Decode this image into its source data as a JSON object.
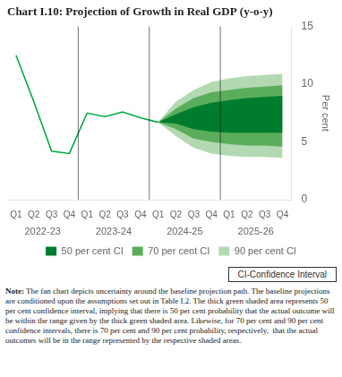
{
  "chart_data": {
    "type": "line",
    "title": "Chart I.10: Projection of Growth in Real GDP (y-o-y)",
    "y_label": "Per cent",
    "categories": [
      "Q1",
      "Q2",
      "Q3",
      "Q4",
      "Q1",
      "Q2",
      "Q3",
      "Q4",
      "Q1",
      "Q2",
      "Q3",
      "Q4",
      "Q1",
      "Q2",
      "Q3",
      "Q4"
    ],
    "x_groups": [
      "2022-23",
      "2023-24",
      "2024-25",
      "2025-26"
    ],
    "series": [
      {
        "type": "line",
        "color": "#00aa44",
        "values": [
          12.5,
          8.5,
          4.2,
          4.0,
          7.5,
          7.2,
          7.6,
          7.1,
          6.7,
          null,
          null,
          null,
          null,
          null,
          null,
          null
        ]
      },
      {
        "type": "area",
        "name": "50 per cent CI",
        "color": "#007c2e",
        "lower": [
          null,
          null,
          null,
          null,
          null,
          null,
          null,
          null,
          6.7,
          6.6,
          6.1,
          5.9,
          5.8,
          5.8,
          5.8,
          5.8
        ],
        "upper": [
          null,
          null,
          null,
          null,
          null,
          null,
          null,
          null,
          6.7,
          7.4,
          8.0,
          8.4,
          8.6,
          8.8,
          8.9,
          9.0
        ]
      },
      {
        "type": "area",
        "name": "70 per cent CI",
        "color": "#5aad5a",
        "lower": [
          null,
          null,
          null,
          null,
          null,
          null,
          null,
          null,
          6.7,
          6.1,
          5.3,
          5.0,
          4.8,
          4.7,
          4.7,
          4.6
        ],
        "upper": [
          null,
          null,
          null,
          null,
          null,
          null,
          null,
          null,
          6.7,
          7.9,
          8.8,
          9.3,
          9.5,
          9.7,
          9.8,
          9.9
        ]
      },
      {
        "type": "area",
        "name": "90 per cent CI",
        "color": "#b2d9b2",
        "lower": [
          null,
          null,
          null,
          null,
          null,
          null,
          null,
          null,
          6.7,
          5.5,
          4.5,
          4.0,
          3.8,
          3.7,
          3.7,
          3.6
        ],
        "upper": [
          null,
          null,
          null,
          null,
          null,
          null,
          null,
          null,
          6.7,
          8.5,
          9.5,
          10.2,
          10.5,
          10.7,
          10.8,
          10.9
        ]
      }
    ],
    "ylim": [
      0,
      15
    ],
    "yticks": [
      0,
      5,
      10,
      15
    ],
    "grid": false,
    "legend": "bottom",
    "annotations": [
      "CI-Confidence Interval"
    ],
    "note": {
      "label": "Note:",
      "text": " The fan chart depicts uncertainty around the baseline projection path. The baseline projections are conditioned upon the assumptions set out in Table I.2. The thick green shaded area represents 50 per cent confidence interval, implying that there is 50 per cent probability that the actual outcome will be within the range given by the thick green shaded area. Likewise, for 70 per cent and 90 per cent confidence intervals, there is 70 per cent and 90 per cent probability, respectively,  that the actual outcomes will be in the range represented by the respective shaded areas."
    }
  }
}
